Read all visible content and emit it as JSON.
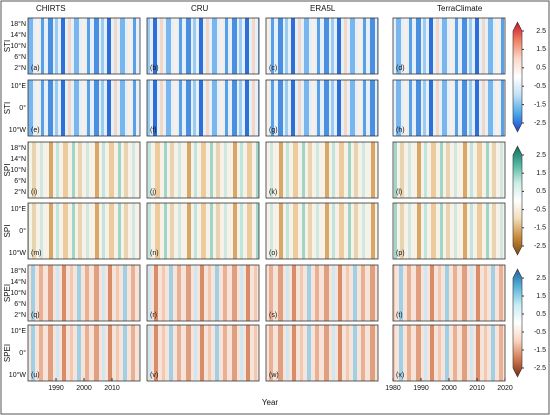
{
  "columns": [
    "CHIRTS",
    "CRU",
    "ERA5L",
    "TerraClimate"
  ],
  "rows": [
    {
      "label": "STI",
      "yticks": [
        "18°N",
        "14°N",
        "10°N",
        "6°N",
        "2°N"
      ]
    },
    {
      "label": "STI",
      "yticks": [
        "10°E",
        "0°",
        "10°W"
      ]
    },
    {
      "label": "SPI",
      "yticks": [
        "18°N",
        "14°N",
        "10°N",
        "6°N",
        "2°N"
      ]
    },
    {
      "label": "SPI",
      "yticks": [
        "10°E",
        "0°",
        "10°W"
      ]
    },
    {
      "label": "SPEI",
      "yticks": [
        "18°N",
        "14°N",
        "10°N",
        "6°N",
        "2°N"
      ]
    },
    {
      "label": "SPEI",
      "yticks": [
        "10°E",
        "0°",
        "10°W"
      ]
    }
  ],
  "panels": [
    [
      "(a)",
      "(b)",
      "(c)",
      "(d)"
    ],
    [
      "(e)",
      "(f)",
      "(g)",
      "(h)"
    ],
    [
      "(i)",
      "(j)",
      "(k)",
      "(l)"
    ],
    [
      "(m)",
      "(n)",
      "(o)",
      "(p)"
    ],
    [
      "(q)",
      "(r)",
      "(s)",
      "(t)"
    ],
    [
      "(u)",
      "(v)",
      "(w)",
      "(x)"
    ]
  ],
  "xaxis": {
    "label": "Year",
    "xlim": [
      1980,
      2020
    ],
    "first_column_ticks": [
      1990,
      2000,
      2010
    ],
    "last_column_ticks": [
      1980,
      1990,
      2000,
      2010,
      2020
    ]
  },
  "colorbars": [
    {
      "ticks": [
        2.5,
        1.5,
        0.5,
        -0.5,
        -1.5,
        -2.5
      ],
      "colors": [
        "#c8102e",
        "#f08060",
        "#fbd8c8",
        "#ffffff",
        "#bfe0f5",
        "#4aa8e8",
        "#1a3fd0"
      ]
    },
    {
      "ticks": [
        2.5,
        1.5,
        0.5,
        -0.5,
        -1.5,
        -2.5
      ],
      "colors": [
        "#0f6b5a",
        "#4fb5a0",
        "#c8ece4",
        "#ffffff",
        "#f2ddb8",
        "#c98c3c",
        "#7a4a10"
      ]
    },
    {
      "ticks": [
        2.5,
        1.5,
        0.5,
        -0.5,
        -1.5,
        -2.5
      ],
      "colors": [
        "#1f5fa0",
        "#5ab4d8",
        "#c8ecf4",
        "#ffffff",
        "#f8d4c0",
        "#d07a50",
        "#7a2a10"
      ]
    }
  ]
}
